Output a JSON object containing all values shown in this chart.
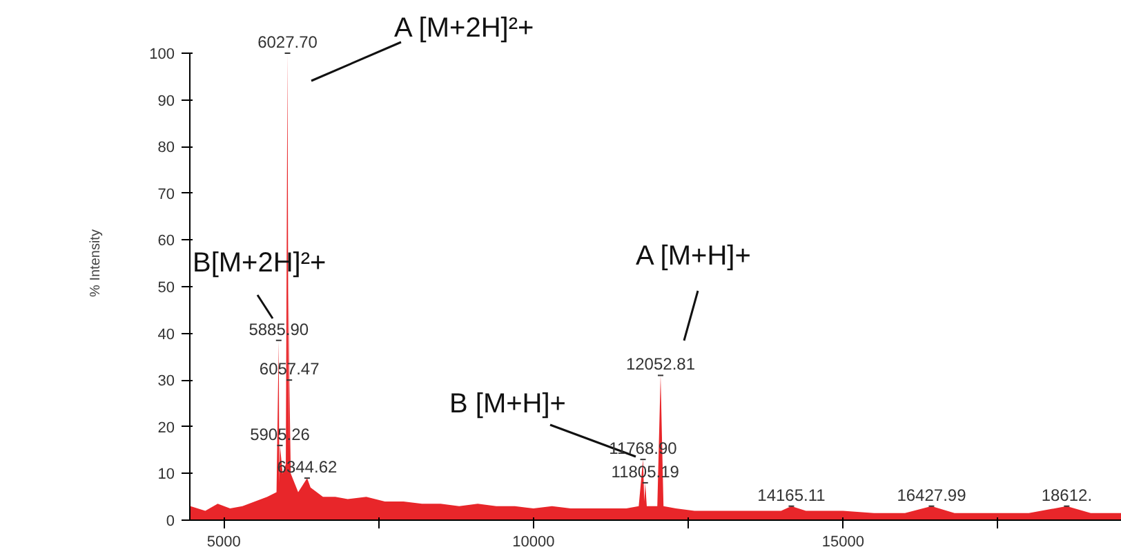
{
  "chart_data": {
    "type": "area",
    "ylabel": "% Intensity",
    "xlim": [
      4450,
      19500
    ],
    "ylim": [
      0,
      100
    ],
    "xticks": [
      5000,
      {
        "value": 7500,
        "label": null
      },
      10000,
      {
        "value": 12500,
        "label": null
      },
      15000,
      {
        "value": 17500,
        "label": null
      }
    ],
    "yticks": [
      0,
      10,
      20,
      30,
      40,
      50,
      60,
      70,
      80,
      90,
      100
    ],
    "grid": false,
    "series": [
      {
        "color": "#e8262a",
        "x": [
          4460,
          4700,
          4900,
          5100,
          5300,
          5500,
          5700,
          5850,
          5885.9,
          5895,
          5905.26,
          5950,
          6000,
          6027.7,
          6045,
          6050,
          6057.47,
          6080,
          6200,
          6344.62,
          6400,
          6600,
          6800,
          7000,
          7300,
          7600,
          7900,
          8200,
          8500,
          8800,
          9100,
          9400,
          9700,
          10000,
          10300,
          10600,
          10900,
          11200,
          11500,
          11700,
          11768.9,
          11790,
          11805.19,
          11830,
          12000,
          12052.81,
          12100,
          12300,
          12600,
          13000,
          13500,
          14000,
          14165.11,
          14400,
          15000,
          15500,
          16000,
          16427.99,
          16800,
          17500,
          18000,
          18612,
          19000,
          19500
        ],
        "values": [
          3,
          2,
          3.5,
          2.5,
          3,
          4,
          5,
          6,
          38.5,
          8,
          16,
          10,
          12,
          100,
          15,
          49,
          30,
          10,
          6,
          9,
          7,
          5,
          5,
          4.5,
          5,
          4,
          4,
          3.5,
          3.5,
          3,
          3.5,
          3,
          3,
          2.5,
          3,
          2.5,
          2.5,
          2.5,
          2.5,
          3,
          13,
          4,
          8,
          3,
          3,
          31,
          3,
          2.5,
          2,
          2,
          2,
          2,
          3,
          2,
          2,
          1.5,
          1.5,
          3,
          1.5,
          1.5,
          1.5,
          3,
          1.5,
          1.5
        ]
      }
    ],
    "annotations": [
      "A [M+2H]²+",
      "B[M+2H]²+",
      "A [M+H]+",
      "B [M+H]+",
      {
        "text": "6027.70",
        "x": 6027.7,
        "y": 100
      },
      {
        "text": "5885.90",
        "x": 5885.9,
        "y": 38.5
      },
      {
        "text": "6057.47",
        "x": 6057.47,
        "y": 30
      },
      {
        "text": "5905.26",
        "x": 5905.26,
        "y": 16
      },
      {
        "text": "6344.62",
        "x": 6344.62,
        "y": 9
      },
      {
        "text": "12052.81",
        "x": 12052.81,
        "y": 31
      },
      {
        "text": "11768.90",
        "x": 11768.9,
        "y": 13
      },
      {
        "text": "11805.19",
        "x": 11805.19,
        "y": 8
      },
      {
        "text": "14165.11",
        "x": 14165.11,
        "y": 3
      },
      {
        "text": "16427.99",
        "x": 16427.99,
        "y": 3
      },
      {
        "text": "18612.",
        "x": 18612,
        "y": 3
      }
    ]
  }
}
